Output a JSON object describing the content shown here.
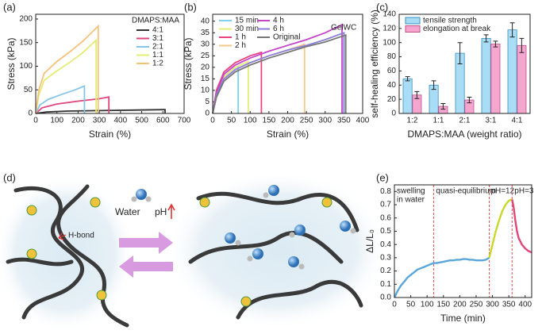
{
  "chart_data": [
    {
      "type": "line",
      "label": "(a)",
      "xlabel": "Strain (%)",
      "ylabel": "Stress (kPa)",
      "xlim": [
        0,
        700
      ],
      "xticks": [
        0,
        100,
        200,
        300,
        400,
        500,
        600,
        700
      ],
      "ylim": [
        0,
        210
      ],
      "yticks": [
        0,
        50,
        100,
        150,
        200
      ],
      "legend": "upper right",
      "legend_title": "DMAPS:MAA",
      "legend_columns": 1,
      "series": [
        {
          "name": "4:1",
          "color": "#333333",
          "x": [
            0,
            50,
            150,
            300,
            450,
            600,
            610,
            610
          ],
          "values": [
            0,
            3,
            5,
            6,
            7,
            8,
            8,
            0
          ]
        },
        {
          "name": "3:1",
          "color": "#e0457b",
          "x": [
            0,
            30,
            100,
            200,
            300,
            345,
            345
          ],
          "values": [
            0,
            12,
            20,
            26,
            31,
            35,
            0
          ]
        },
        {
          "name": "2:1",
          "color": "#86c5e8",
          "x": [
            0,
            20,
            60,
            120,
            180,
            230,
            230
          ],
          "values": [
            0,
            18,
            30,
            40,
            49,
            58,
            0
          ]
        },
        {
          "name": "1:1",
          "color": "#e4ec74",
          "x": [
            0,
            15,
            40,
            100,
            160,
            220,
            285,
            285
          ],
          "values": [
            0,
            40,
            70,
            90,
            108,
            128,
            155,
            0
          ]
        },
        {
          "name": "1:2",
          "color": "#f5c27a",
          "x": [
            0,
            15,
            40,
            100,
            160,
            220,
            295,
            295
          ],
          "values": [
            0,
            50,
            85,
            110,
            130,
            152,
            185,
            0
          ]
        }
      ]
    },
    {
      "type": "line",
      "label": "(b)",
      "xlabel": "Strain (%)",
      "ylabel": "Stress (kPa)",
      "annotation": "GelWC",
      "xlim": [
        0,
        400
      ],
      "xticks": [
        0,
        50,
        100,
        150,
        200,
        250,
        300,
        350,
        400
      ],
      "ylim": [
        0,
        43
      ],
      "yticks": [
        0,
        5,
        10,
        15,
        20,
        25,
        30,
        35,
        40
      ],
      "legend": "upper left",
      "legend_columns": 2,
      "series": [
        {
          "name": "15 min",
          "color": "#7fd3f0",
          "x": [
            0,
            10,
            30,
            60,
            68,
            68
          ],
          "values": [
            0,
            9,
            16,
            20,
            20.5,
            0
          ]
        },
        {
          "name": "30 min",
          "color": "#e6ee78",
          "x": [
            0,
            10,
            30,
            60,
            95,
            95
          ],
          "values": [
            0,
            9,
            16,
            20,
            22.5,
            0
          ]
        },
        {
          "name": "1 h",
          "color": "#e8457f",
          "x": [
            0,
            10,
            30,
            60,
            100,
            130,
            130
          ],
          "values": [
            0,
            10,
            18,
            22,
            25,
            26.5,
            0
          ]
        },
        {
          "name": "2 h",
          "color": "#f6c98a",
          "x": [
            0,
            10,
            30,
            60,
            100,
            150,
            200,
            245,
            245
          ],
          "values": [
            0,
            8,
            15,
            19,
            22,
            25,
            27.5,
            30,
            0
          ]
        },
        {
          "name": "4 h",
          "color": "#c545c8",
          "x": [
            0,
            10,
            30,
            60,
            100,
            150,
            200,
            250,
            300,
            345,
            345
          ],
          "values": [
            0,
            9,
            17,
            21,
            24,
            27,
            29.5,
            32,
            35,
            38.5,
            0
          ]
        },
        {
          "name": "6 h",
          "color": "#8a7fd6",
          "x": [
            0,
            10,
            30,
            60,
            100,
            150,
            200,
            250,
            300,
            350,
            350
          ],
          "values": [
            0,
            8,
            15,
            19,
            22,
            25,
            27.5,
            29.5,
            32,
            35,
            0
          ]
        },
        {
          "name": "Original",
          "color": "#777777",
          "x": [
            0,
            10,
            30,
            60,
            100,
            150,
            200,
            250,
            300,
            355,
            355
          ],
          "values": [
            0,
            7,
            14,
            18,
            21,
            24,
            26.5,
            29,
            31,
            34,
            0
          ]
        }
      ]
    },
    {
      "type": "bar",
      "label": "(c)",
      "xlabel": "DMAPS:MAA (weight ratio)",
      "ylabel": "self-healing efficiency (%)",
      "categories": [
        "1:2",
        "1:1",
        "2:1",
        "3:1",
        "4:1"
      ],
      "ylim": [
        0,
        140
      ],
      "yticks": [
        0,
        20,
        40,
        60,
        80,
        100,
        120,
        140
      ],
      "legend": "upper left",
      "legend_columns": 1,
      "series": [
        {
          "name": "tensile strength",
          "color": "#a9ddf5",
          "values": [
            49,
            40,
            85,
            106,
            118
          ],
          "errors": [
            3,
            6,
            15,
            5,
            10
          ]
        },
        {
          "name": "elongation at break",
          "color": "#f4a6cf",
          "values": [
            26,
            10,
            19,
            98,
            96
          ],
          "errors": [
            5,
            4,
            4,
            4,
            10
          ]
        }
      ]
    },
    {
      "type": "line",
      "label": "(e)",
      "xlabel": "Time (min)",
      "ylabel": "ΔL/L₀",
      "xlim": [
        0,
        420
      ],
      "xticks": [
        0,
        50,
        100,
        150,
        200,
        250,
        300,
        350,
        400
      ],
      "ylim": [
        0,
        0.85
      ],
      "yticks": [
        {
          "value": 0,
          "label": "0.0"
        },
        0.1,
        0.2,
        0.3,
        0.4,
        0.5,
        0.6,
        0.7,
        0.8
      ],
      "vlines": [
        120,
        290,
        360
      ],
      "regions": [
        [
          "swelling",
          "in water"
        ],
        [
          "quasi-equilibrium"
        ],
        [
          "pH=12"
        ],
        [
          "pH=3"
        ]
      ],
      "series": [
        {
          "color": "#5aa6db",
          "x": [
            0,
            10,
            20,
            30,
            40,
            50,
            60,
            70,
            80,
            90,
            100,
            110,
            120,
            130,
            140,
            150,
            160,
            170,
            180,
            190,
            200,
            210,
            220,
            230,
            240,
            250,
            260,
            270,
            280,
            290
          ],
          "values": [
            0,
            0.05,
            0.09,
            0.12,
            0.15,
            0.17,
            0.19,
            0.21,
            0.22,
            0.23,
            0.24,
            0.25,
            0.26,
            0.26,
            0.265,
            0.27,
            0.275,
            0.28,
            0.28,
            0.285,
            0.285,
            0.29,
            0.29,
            0.285,
            0.285,
            0.28,
            0.28,
            0.28,
            0.285,
            0.3
          ]
        },
        {
          "color": "#c9d62a",
          "x": [
            290,
            300,
            310,
            320,
            330,
            340,
            350,
            360
          ],
          "values": [
            0.3,
            0.4,
            0.5,
            0.58,
            0.65,
            0.7,
            0.73,
            0.74
          ]
        },
        {
          "color": "#e0457b",
          "x": [
            360,
            365,
            370,
            375,
            380,
            390,
            400,
            410,
            420
          ],
          "values": [
            0.74,
            0.68,
            0.58,
            0.5,
            0.45,
            0.4,
            0.37,
            0.35,
            0.34
          ]
        }
      ]
    }
  ],
  "diagram": {
    "label": "(d)",
    "water": "Water",
    "ph": "pH",
    "hbond": "H-bond"
  }
}
